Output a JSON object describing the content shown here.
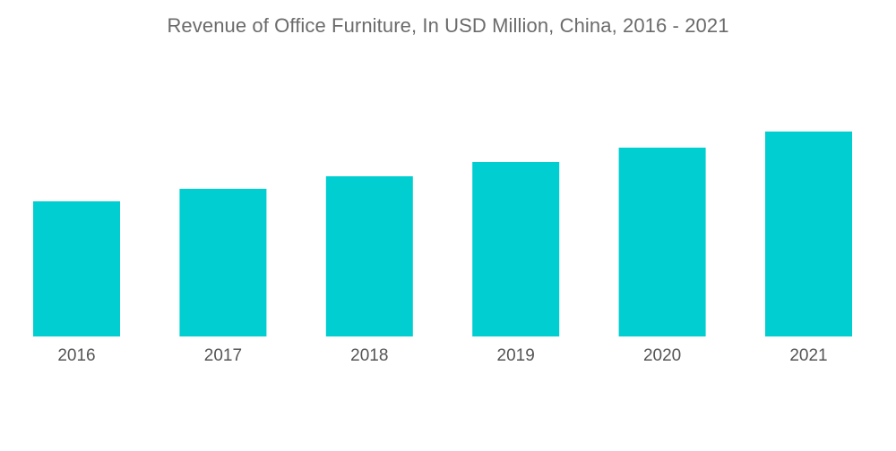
{
  "chart_data": {
    "type": "bar",
    "title": "Revenue of Office Furniture, In USD Million, China, 2016 - 2021",
    "xlabel": "",
    "ylabel": "",
    "categories": [
      "2016",
      "2017",
      "2018",
      "2019",
      "2020",
      "2021"
    ],
    "values": [
      151,
      165,
      179,
      195,
      211,
      229
    ],
    "ylim": [
      0,
      229
    ],
    "grid": false,
    "legend": "none",
    "bar_color": "#00ced1"
  }
}
